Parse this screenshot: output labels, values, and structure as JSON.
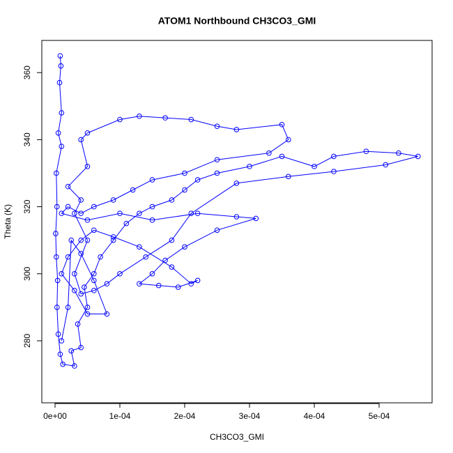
{
  "chart_data": {
    "type": "line",
    "title": "ATOM1 Northbound CH3CO3_GMI",
    "xlabel": "CH3CO3_GMI",
    "ylabel": "Theta (K)",
    "color": "#0000ff",
    "markers": true,
    "x": [
      8e-06,
      9e-06,
      7e-06,
      1e-05,
      5e-06,
      1e-05,
      2e-06,
      3e-06,
      1e-06,
      2e-06,
      4e-06,
      3e-06,
      5e-06,
      8e-06,
      1.2e-05,
      3e-05,
      2.5e-05,
      4e-05,
      3.5e-05,
      5e-05,
      4.5e-05,
      6e-05,
      7e-05,
      9e-05,
      0.00011,
      0.00013,
      0.00015,
      0.00018,
      0.0002,
      0.00022,
      0.00025,
      0.0003,
      0.00035,
      0.0004,
      0.00043,
      0.00048,
      0.00053,
      0.00056,
      0.00051,
      0.00043,
      0.00036,
      0.00028,
      0.00021,
      0.00018,
      0.00014,
      0.0001,
      8e-05,
      6e-05,
      4e-05,
      3e-05,
      5e-05,
      3e-05,
      4e-05,
      2e-05,
      5e-05,
      4e-05,
      5e-05,
      0.0001,
      0.00013,
      0.00017,
      0.00021,
      0.00025,
      0.00028,
      0.00035,
      0.00036,
      0.00033,
      0.00025,
      0.0002,
      0.00015,
      0.00012,
      9e-05,
      6e-05,
      4e-05,
      2e-05,
      1e-05,
      5e-05,
      0.0001,
      0.00015,
      0.00022,
      0.00028,
      0.00031,
      0.00025,
      0.0002,
      0.00017,
      0.00015,
      0.00013,
      0.00016,
      0.00019,
      0.00022,
      0.00021,
      0.00018,
      0.00013,
      9e-05,
      6e-05,
      4e-05,
      2e-05,
      1e-05,
      3e-05,
      5e-05,
      8e-05,
      6e-05,
      4e-05,
      2.5e-05,
      2e-05,
      1e-05
    ],
    "y": [
      365,
      362,
      357,
      348,
      342,
      338,
      330,
      320,
      312,
      305,
      298,
      290,
      282,
      276,
      273,
      272.5,
      277,
      278,
      285,
      290,
      296,
      300,
      305,
      310,
      315,
      318,
      320,
      322,
      325,
      328,
      330,
      332,
      335,
      332,
      335,
      336.5,
      336,
      335,
      332.5,
      330.5,
      329,
      327,
      318,
      310,
      305,
      300,
      297,
      295,
      294,
      300,
      310,
      318,
      322,
      326,
      332,
      340,
      342,
      346,
      347,
      346.5,
      346,
      344,
      343,
      344.5,
      340,
      336,
      334,
      330,
      328,
      325,
      322,
      320,
      318,
      320,
      318,
      316,
      318,
      316,
      318,
      317,
      316.5,
      313,
      308,
      304,
      300,
      297,
      296.5,
      296,
      298,
      297,
      302,
      308,
      311,
      313,
      310,
      305,
      300,
      295,
      288,
      288,
      298,
      306,
      310,
      290,
      280
    ],
    "xlim": [
      -2.04e-05,
      0.0005817
    ],
    "ylim": [
      261.5,
      369.6
    ],
    "xticks": [
      {
        "value": 0,
        "label": "0e+00"
      },
      {
        "value": 0.0001,
        "label": "1e-04"
      },
      {
        "value": 0.0002,
        "label": "2e-04"
      },
      {
        "value": 0.0003,
        "label": "3e-04"
      },
      {
        "value": 0.0004,
        "label": "4e-04"
      },
      {
        "value": 0.0005,
        "label": "5e-04"
      }
    ],
    "yticks": [
      280,
      300,
      320,
      340,
      360
    ]
  }
}
